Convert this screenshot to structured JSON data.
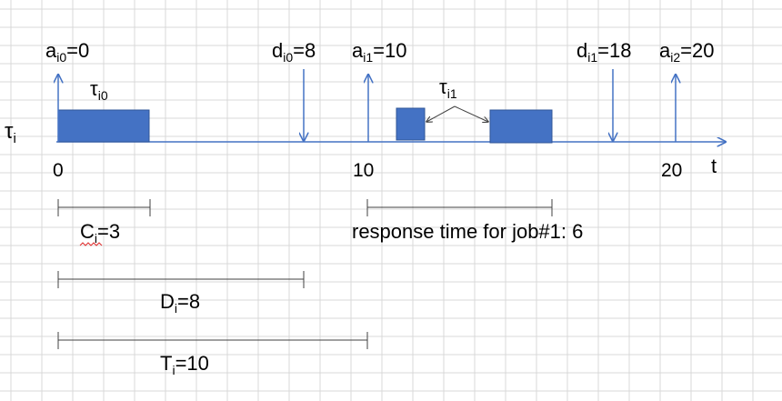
{
  "diagram": {
    "task_label": {
      "base": "τ",
      "sub": "i"
    },
    "time_axis": {
      "label": "t",
      "ticks": [
        "0",
        "10",
        "20"
      ]
    },
    "arrivals": [
      {
        "base": "a",
        "sub": "i0",
        "rest": "=0"
      },
      {
        "base": "a",
        "sub": "i1",
        "rest": "=10"
      },
      {
        "base": "a",
        "sub": "i2",
        "rest": "=20"
      }
    ],
    "deadlines": [
      {
        "base": "d",
        "sub": "i0",
        "rest": "=8"
      },
      {
        "base": "d",
        "sub": "i1",
        "rest": "=18"
      }
    ],
    "jobs": [
      {
        "base": "τ",
        "sub": "i0"
      },
      {
        "base": "τ",
        "sub": "i1"
      }
    ],
    "measures": {
      "computation": {
        "base": "C",
        "sub": "i",
        "rest": "=3"
      },
      "deadline": {
        "base": "D",
        "sub": "i",
        "rest": "=8"
      },
      "period": {
        "base": "T",
        "sub": "i",
        "rest": "=10"
      },
      "response": "response time for job#1: 6"
    }
  },
  "colors": {
    "grid": "#d9d9d9",
    "axis": "#4472c4",
    "block_fill": "#4472c4",
    "block_stroke": "#2f5597",
    "line": "#404040"
  }
}
